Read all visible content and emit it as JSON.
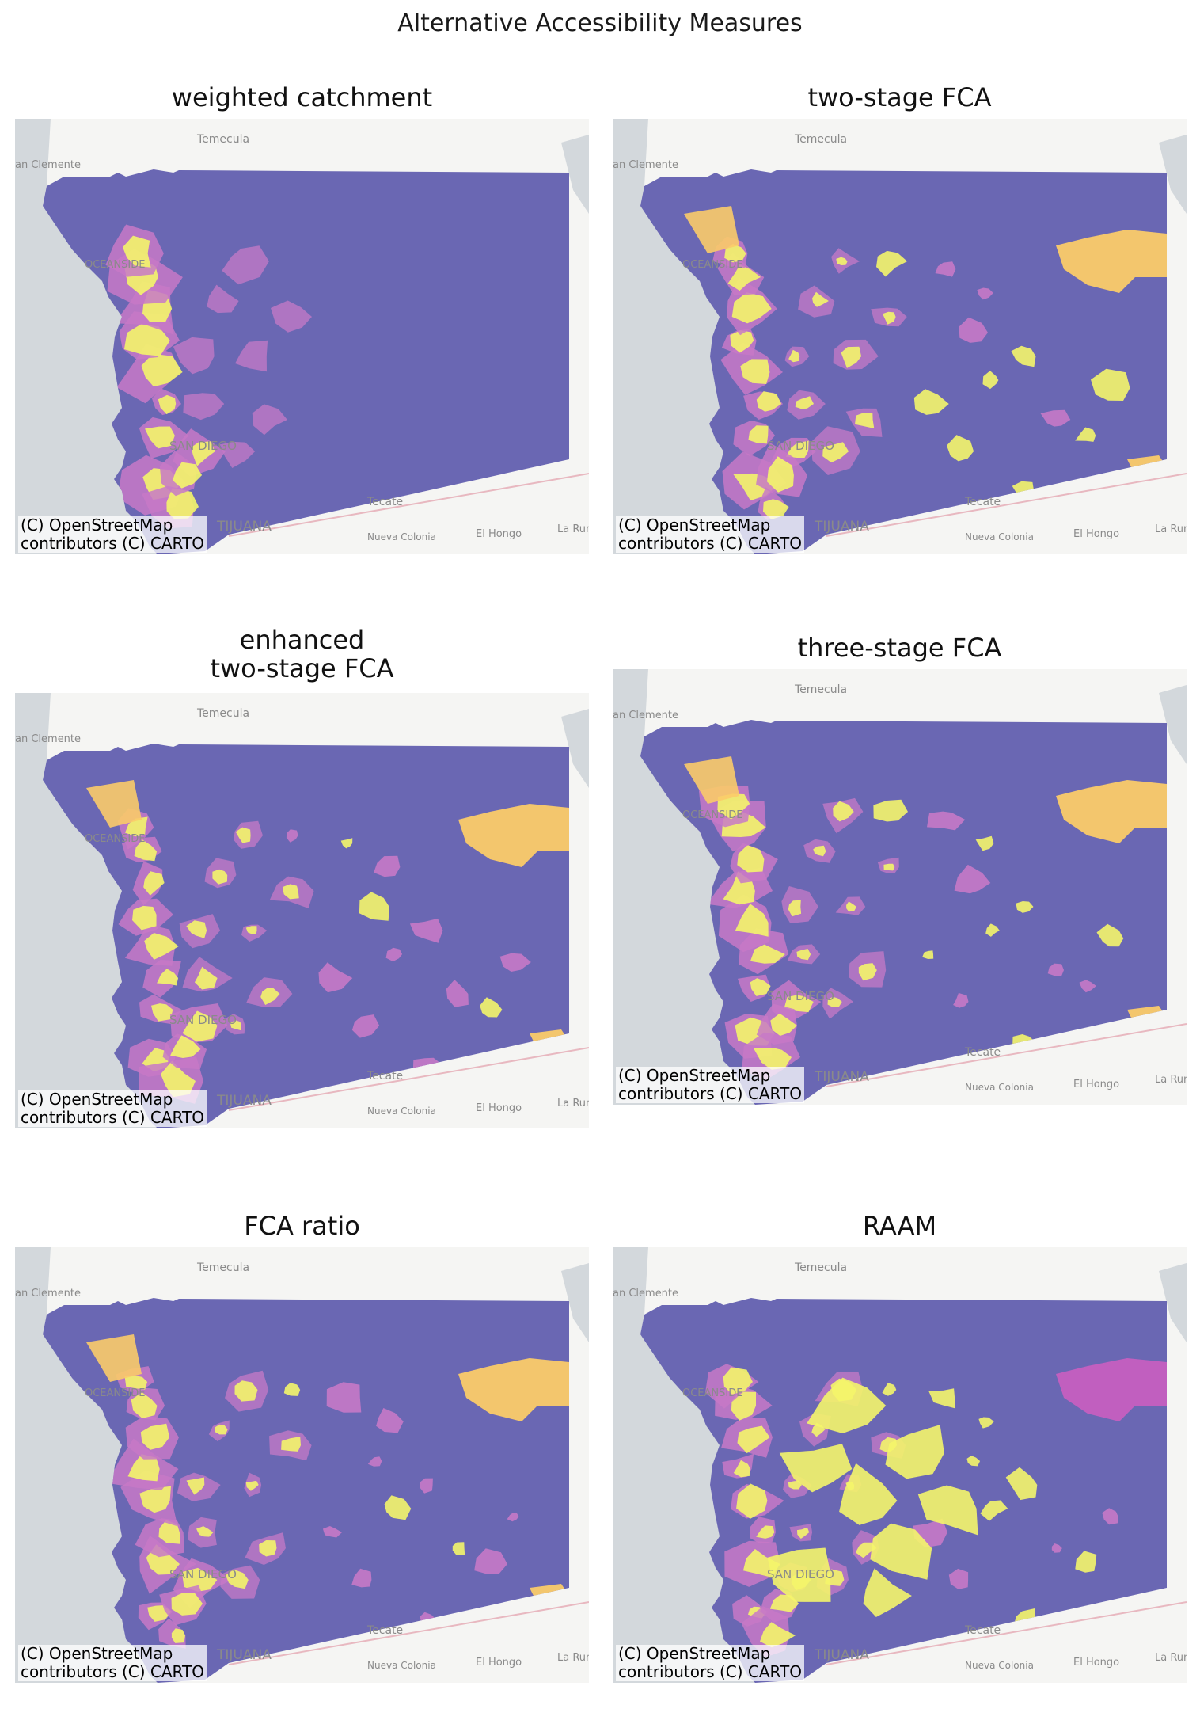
{
  "title": "Alternative Accessibility Measures",
  "attribution_line1": "(C) OpenStreetMap",
  "attribution_line2": "contributors (C) CARTO",
  "basemap_labels": {
    "temecula": "Temecula",
    "san_clemente": "an Clemente",
    "oceanside": "OCEANSIDE",
    "san_diego": "SAN DIEGO",
    "tecate": "Tecate",
    "tijuana": "TIJUANA",
    "nueva_colonia": "Nueva Colonia",
    "el_hongo": "El Hongo",
    "la_rumorosa": "La Rumoro"
  },
  "colors": {
    "low": "#6a67b3",
    "mid": "#c779c7",
    "high": "#f4f56a",
    "orange": "#fbcb69",
    "ocean": "#d3d8dc",
    "land": "#f5f5f3"
  },
  "panels": [
    {
      "key": "weighted_catchment",
      "title": [
        "weighted catchment"
      ],
      "pattern": "smooth"
    },
    {
      "key": "two_stage_fca",
      "title": [
        "two-stage FCA"
      ],
      "pattern": "patchy"
    },
    {
      "key": "enhanced_two_stage_fca",
      "title": [
        "enhanced",
        "two-stage FCA"
      ],
      "pattern": "patchy"
    },
    {
      "key": "three_stage_fca",
      "title": [
        "three-stage FCA"
      ],
      "pattern": "patchy"
    },
    {
      "key": "fca_ratio",
      "title": [
        "FCA ratio"
      ],
      "pattern": "patchy"
    },
    {
      "key": "raam",
      "title": [
        "RAAM"
      ],
      "pattern": "raam"
    }
  ]
}
